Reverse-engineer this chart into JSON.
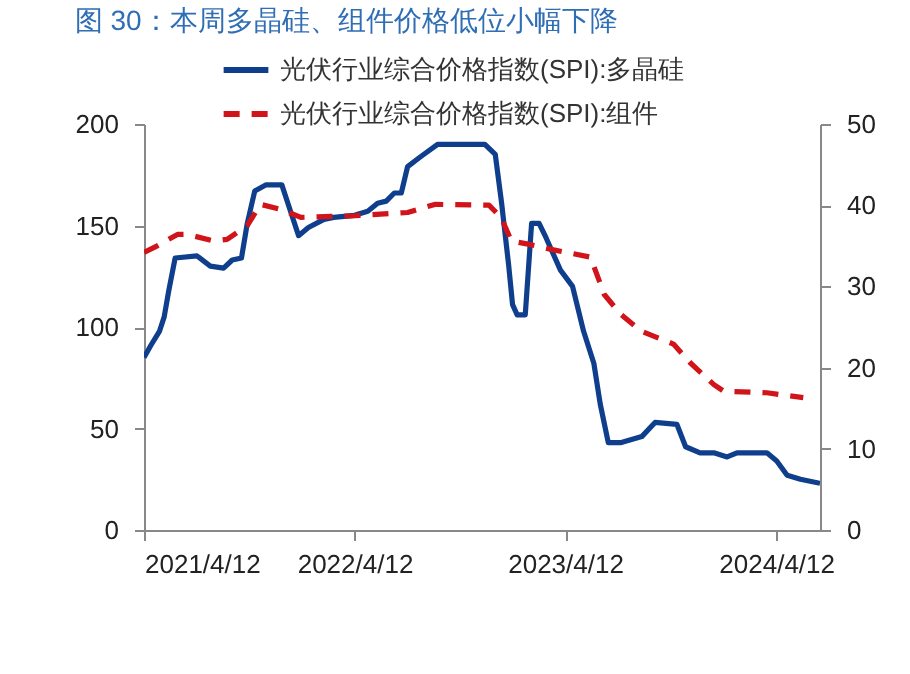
{
  "chart_data": {
    "type": "line",
    "title": "图 30：本周多晶硅、组件价格低位小幅下降",
    "xlim": [
      "2021-04-12",
      "2024-06-27"
    ],
    "xticks": [
      {
        "value": "2021-04-12",
        "label": "2021/4/12"
      },
      {
        "value": "2022-04-12",
        "label": "2022/4/12"
      },
      {
        "value": "2023-04-12",
        "label": "2023/4/12"
      },
      {
        "value": "2024-04-12",
        "label": "2024/4/12"
      }
    ],
    "ylim": [
      0,
      200
    ],
    "yticks": [
      0,
      50,
      100,
      150,
      200
    ],
    "y2lim": [
      0,
      50
    ],
    "y2ticks": [
      0,
      10,
      20,
      30,
      40,
      50
    ],
    "grid": false,
    "legend": "top",
    "marker": "none",
    "series": [
      {
        "name": "光伏行业综合价格指数(SPI):多晶硅",
        "color": "#0f3f8c",
        "line_style": "solid",
        "x": [
          "2021-04-12",
          "2021-04-24",
          "2021-05-09",
          "2021-05-17",
          "2021-05-25",
          "2021-06-05",
          "2021-07-13",
          "2021-08-05",
          "2021-08-28",
          "2021-09-12",
          "2021-09-28",
          "2021-10-08",
          "2021-10-21",
          "2021-11-09",
          "2021-12-07",
          "2021-12-22",
          "2022-01-05",
          "2022-01-22",
          "2022-02-18",
          "2022-03-07",
          "2022-04-12",
          "2022-05-05",
          "2022-05-22",
          "2022-06-06",
          "2022-06-20",
          "2022-07-02",
          "2022-07-13",
          "2022-08-05",
          "2022-09-03",
          "2022-11-24",
          "2022-12-12",
          "2022-12-23",
          "2023-01-04",
          "2023-01-11",
          "2023-01-19",
          "2023-02-02",
          "2023-02-13",
          "2023-02-26",
          "2023-03-10",
          "2023-04-04",
          "2023-04-25",
          "2023-05-14",
          "2023-06-01",
          "2023-06-12",
          "2023-06-26",
          "2023-07-17",
          "2023-08-23",
          "2023-09-15",
          "2023-10-23",
          "2023-11-07",
          "2023-12-02",
          "2023-12-26",
          "2024-01-18",
          "2024-02-04",
          "2024-03-27",
          "2024-04-13",
          "2024-05-01",
          "2024-05-24",
          "2024-06-27"
        ],
        "values": [
          85,
          91,
          98,
          105,
          118,
          134,
          135,
          130,
          129,
          133,
          134,
          151,
          167,
          170,
          170,
          157,
          145,
          149,
          153,
          154,
          155,
          157,
          161,
          162,
          166,
          166,
          179,
          184,
          190,
          190,
          185,
          161,
          131,
          111,
          106,
          106,
          151,
          151,
          144,
          128,
          120,
          98,
          82,
          62,
          43,
          43,
          46,
          53,
          52,
          41,
          38,
          38,
          36,
          38,
          38,
          34,
          27,
          25,
          23
        ]
      },
      {
        "name": "光伏行业综合价格指数(SPI):组件",
        "color": "#d0141a",
        "line_style": "dashed",
        "axis": "y2",
        "x": [
          "2021-04-12",
          "2021-05-05",
          "2021-06-09",
          "2021-06-26",
          "2021-08-11",
          "2021-09-03",
          "2021-10-08",
          "2021-10-31",
          "2021-12-05",
          "2022-01-09",
          "2022-04-12",
          "2022-07-13",
          "2022-08-29",
          "2022-12-01",
          "2022-12-22",
          "2023-01-09",
          "2023-02-07",
          "2023-03-23",
          "2023-05-26",
          "2023-06-19",
          "2023-07-17",
          "2023-08-22",
          "2023-10-17",
          "2023-11-15",
          "2023-12-26",
          "2024-01-12",
          "2024-03-27",
          "2024-05-29"
        ],
        "values": [
          34.2,
          35.0,
          36.4,
          36.4,
          35.6,
          35.8,
          37.5,
          40.1,
          39.5,
          38.5,
          38.7,
          39.1,
          40.1,
          40.0,
          38.5,
          35.6,
          35.2,
          34.5,
          33.6,
          29.0,
          26.6,
          24.5,
          22.9,
          20.6,
          17.9,
          17.1,
          16.9,
          16.3
        ]
      }
    ]
  }
}
